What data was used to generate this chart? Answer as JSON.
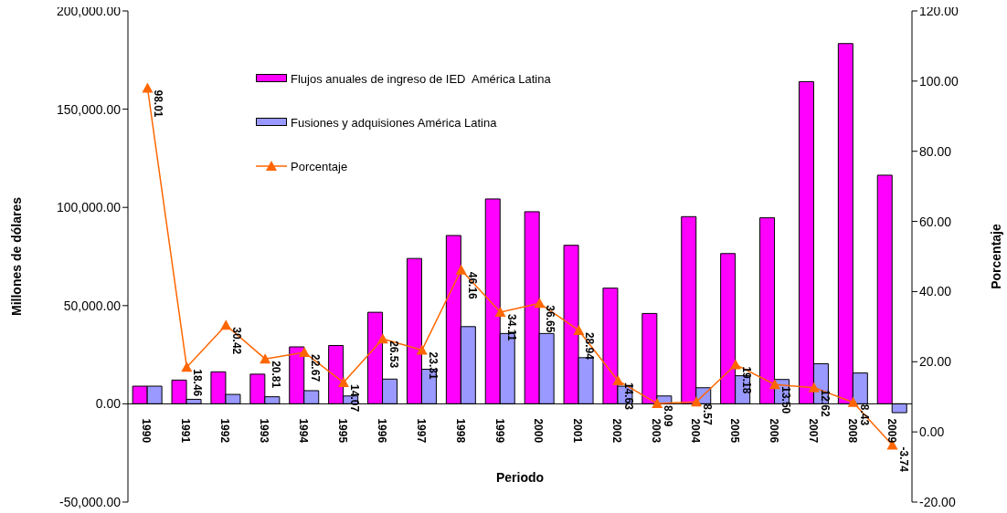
{
  "chart_data": {
    "type": "bar",
    "categories": [
      "1990",
      "1991",
      "1992",
      "1993",
      "1994",
      "1995",
      "1996",
      "1997",
      "1998",
      "1999",
      "2000",
      "2001",
      "2002",
      "2003",
      "2004",
      "2005",
      "2006",
      "2007",
      "2008",
      "2009"
    ],
    "series": [
      {
        "name": "Flujos anuales de ingreso de IED  América Latina",
        "color": "#ff00ff",
        "values": [
          9000,
          12100,
          16300,
          15100,
          29000,
          29700,
          46600,
          74000,
          85700,
          104300,
          97800,
          80700,
          58900,
          46000,
          95300,
          76500,
          94700,
          164000,
          183400,
          116400
        ]
      },
      {
        "name": "Fusiones y adquisiones América Latina",
        "color": "#9999ff",
        "values": [
          9000,
          2300,
          4800,
          3600,
          6700,
          4000,
          12600,
          17600,
          39300,
          35800,
          35800,
          23500,
          9000,
          4000,
          8200,
          14300,
          12400,
          20400,
          15700,
          -4500
        ]
      },
      {
        "name": "Porcentaje",
        "type": "line",
        "axis": "y2",
        "color": "#ff6600",
        "marker": "triangle",
        "values": [
          98.01,
          18.46,
          30.42,
          20.81,
          22.67,
          14.07,
          26.53,
          23.31,
          46.16,
          34.11,
          36.65,
          28.94,
          14.63,
          8.09,
          8.57,
          19.18,
          13.5,
          12.62,
          8.43,
          -3.74
        ],
        "value_labels": [
          "98.01",
          "18.46",
          "30.42",
          "20.81",
          "22.67",
          "14.07",
          "26.53",
          "23.31",
          "46.16",
          "34.11",
          "36.65",
          "28.94",
          "14.63",
          "8.09",
          "8.57",
          "19.18",
          "13.50",
          "12.62",
          "8.43",
          "-3.74"
        ]
      }
    ],
    "xlabel": "Periodo",
    "ylabel": "Millones de dólares",
    "y2label": "Porcentaje",
    "ylim": [
      -50000,
      200000
    ],
    "yticks": [
      {
        "value": -50000,
        "label": "-50,000.00"
      },
      {
        "value": 0,
        "label": "0.00"
      },
      {
        "value": 50000,
        "label": "50,000.00"
      },
      {
        "value": 100000,
        "label": "100,000.00"
      },
      {
        "value": 150000,
        "label": "150,000.00"
      },
      {
        "value": 200000,
        "label": "200,000.00"
      }
    ],
    "y2lim": [
      -20,
      120
    ],
    "y2ticks": [
      {
        "value": -20,
        "label": "-20.00"
      },
      {
        "value": 0,
        "label": "0.00"
      },
      {
        "value": 20,
        "label": "20.00"
      },
      {
        "value": 40,
        "label": "40.00"
      },
      {
        "value": 60,
        "label": "60.00"
      },
      {
        "value": 80,
        "label": "80.00"
      },
      {
        "value": 100,
        "label": "100.00"
      },
      {
        "value": 120,
        "label": "120.00"
      }
    ],
    "grid": false,
    "legend": "top"
  }
}
